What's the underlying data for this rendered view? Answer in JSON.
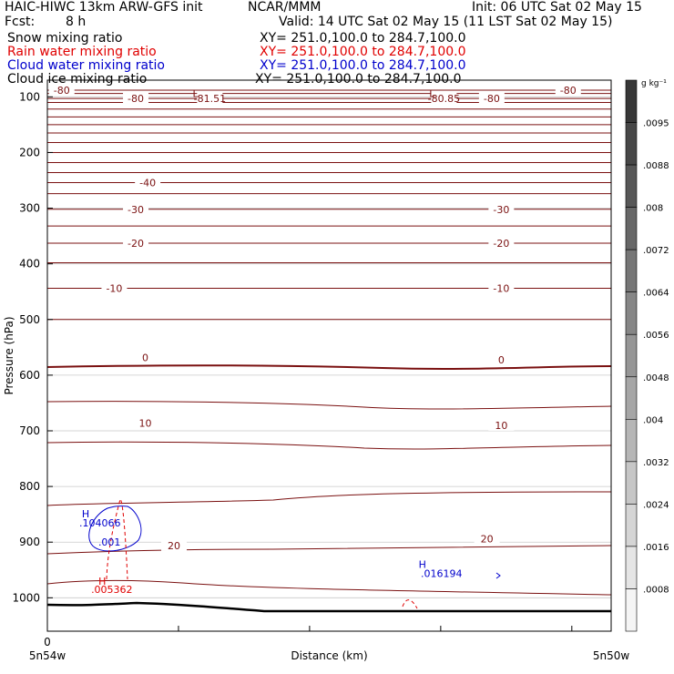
{
  "header": {
    "model": "HAIC-HIWC 13km ARW-GFS init",
    "org": "NCAR/MMM",
    "init": "Init: 06 UTC Sat 02 May 15",
    "fcst_label": "Fcst:",
    "fcst_value": "8 h",
    "valid": "Valid: 14 UTC Sat 02 May 15 (11 LST Sat 02 May 15)"
  },
  "fields": [
    {
      "name": "Snow mixing ratio",
      "xy": "XY= 251.0,100.0 to 284.7,100.0",
      "color": "#000000"
    },
    {
      "name": "Rain water mixing ratio",
      "xy": "XY= 251.0,100.0 to 284.7,100.0",
      "color": "#e00000"
    },
    {
      "name": "Cloud water mixing ratio",
      "xy": "XY= 251.0,100.0 to 284.7,100.0",
      "color": "#0000cc"
    },
    {
      "name": "Cloud ice mixing ratio",
      "xy": "XY= 251.0,100.0 to 284.7,100.0",
      "color": "#000000"
    }
  ],
  "chart_data": {
    "type": "contour cross-section",
    "ylabel": "Pressure (hPa)",
    "xlabel": "Distance (km)",
    "x_start_label": "5n54w",
    "x_end_label": "5n50w",
    "x_tick_label": "0",
    "y_ticks": [
      100,
      200,
      300,
      400,
      500,
      600,
      700,
      800,
      900,
      1000
    ],
    "ylim": [
      1060,
      70
    ],
    "isotherm_color": "#7a1010",
    "contour_labels": [
      {
        "text": "-80",
        "x": 0.6,
        "p": 88
      },
      {
        "text": "-80",
        "x": 3.7,
        "p": 103
      },
      {
        "text": "-81.51",
        "x": 6.8,
        "p": 103
      },
      {
        "text": "-80.85",
        "x": 16.6,
        "p": 103
      },
      {
        "text": "-80",
        "x": 18.6,
        "p": 103
      },
      {
        "text": "-80",
        "x": 21.8,
        "p": 88
      },
      {
        "text": "-40",
        "x": 4.2,
        "p": 254
      },
      {
        "text": "-30",
        "x": 3.7,
        "p": 302
      },
      {
        "text": "-30",
        "x": 19.0,
        "p": 302
      },
      {
        "text": "-20",
        "x": 3.7,
        "p": 363
      },
      {
        "text": "-20",
        "x": 19.0,
        "p": 363
      },
      {
        "text": "-10",
        "x": 2.8,
        "p": 444
      },
      {
        "text": "-10",
        "x": 19.0,
        "p": 444
      },
      {
        "text": "0",
        "x": 4.1,
        "p": 568
      },
      {
        "text": "0",
        "x": 19.0,
        "p": 572
      },
      {
        "text": "10",
        "x": 4.1,
        "p": 686
      },
      {
        "text": "10",
        "x": 19.0,
        "p": 690
      },
      {
        "text": "20",
        "x": 5.3,
        "p": 906
      },
      {
        "text": "20",
        "x": 18.4,
        "p": 894
      }
    ],
    "extrema": [
      {
        "type": "L",
        "x": 6.2,
        "p": 94,
        "color": "#7a1010"
      },
      {
        "type": "L",
        "x": 16.1,
        "p": 94,
        "color": "#7a1010"
      },
      {
        "type": "H",
        "x": 1.6,
        "p": 849,
        "color": "#0000cc"
      },
      {
        "type": "H",
        "x": 15.7,
        "p": 940,
        "color": "#0000cc"
      },
      {
        "type": "H",
        "x": 2.3,
        "p": 970,
        "color": "#e00000"
      }
    ],
    "extrema_values": [
      {
        "text": ".104066",
        "x": 2.2,
        "p": 865,
        "color": "#0000cc"
      },
      {
        "text": ".001",
        "x": 2.6,
        "p": 900,
        "color": "#0000cc"
      },
      {
        "text": ".016194",
        "x": 16.5,
        "p": 956,
        "color": "#0000cc"
      },
      {
        "text": ".005362",
        "x": 2.7,
        "p": 985,
        "color": "#e00000"
      }
    ],
    "colorbar": {
      "units": "g kg⁻¹",
      "labels": [
        ".0095",
        ".0088",
        ".008",
        ".0072",
        ".0064",
        ".0056",
        ".0048",
        ".004",
        ".0032",
        ".0024",
        ".0016",
        ".0008"
      ]
    }
  }
}
